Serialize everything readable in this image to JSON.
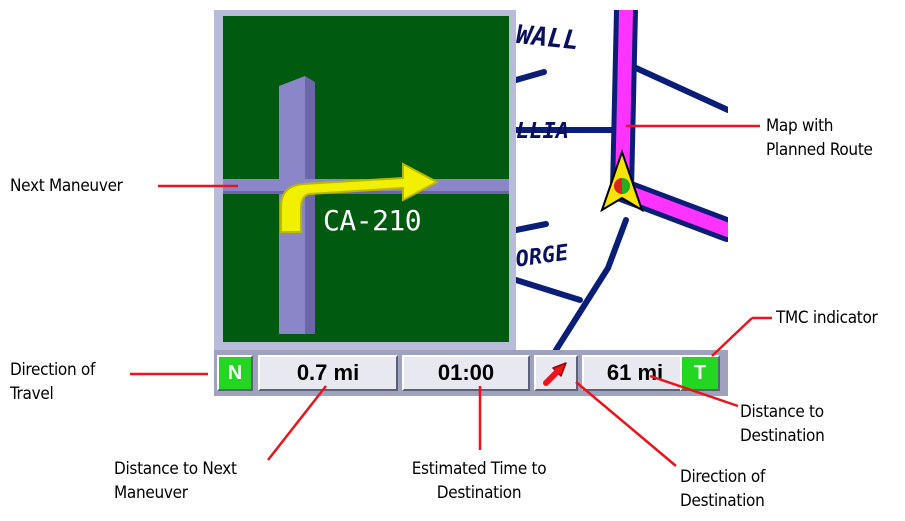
{
  "callouts": {
    "next_maneuver": "Next Maneuver",
    "direction_of_travel": [
      "Direction of",
      "Travel"
    ],
    "distance_to_next_maneuver": [
      "Distance to Next",
      "Maneuver"
    ],
    "estimated_time": [
      "Estimated Time to",
      "Destination"
    ],
    "direction_of_destination": [
      "Direction of",
      "Destination"
    ],
    "distance_to_destination": [
      "Distance to",
      "Destination"
    ],
    "tmc_indicator": "TMC indicator",
    "map_with_route": [
      "Map with",
      "Planned Route"
    ]
  },
  "maneuver_panel": {
    "road_label": "CA-210"
  },
  "map": {
    "street_labels": [
      "WALL",
      "LLIA",
      "ORGE"
    ]
  },
  "status_bar": {
    "heading": "N",
    "distance_to_next": "0.7 mi",
    "eta": "01:00",
    "destination_direction_icon": "arrow-northeast-icon",
    "distance_to_destination": "61 mi",
    "tmc": "T"
  },
  "colors": {
    "route": "#ff33ff",
    "roads": "#0a1e78",
    "maneuver_bg": "#005a0f",
    "maneuver_road": "#8a86c8",
    "maneuver_arrow": "#f0f000",
    "indicator_green": "#22d622",
    "callout_line": "#e8141e"
  }
}
